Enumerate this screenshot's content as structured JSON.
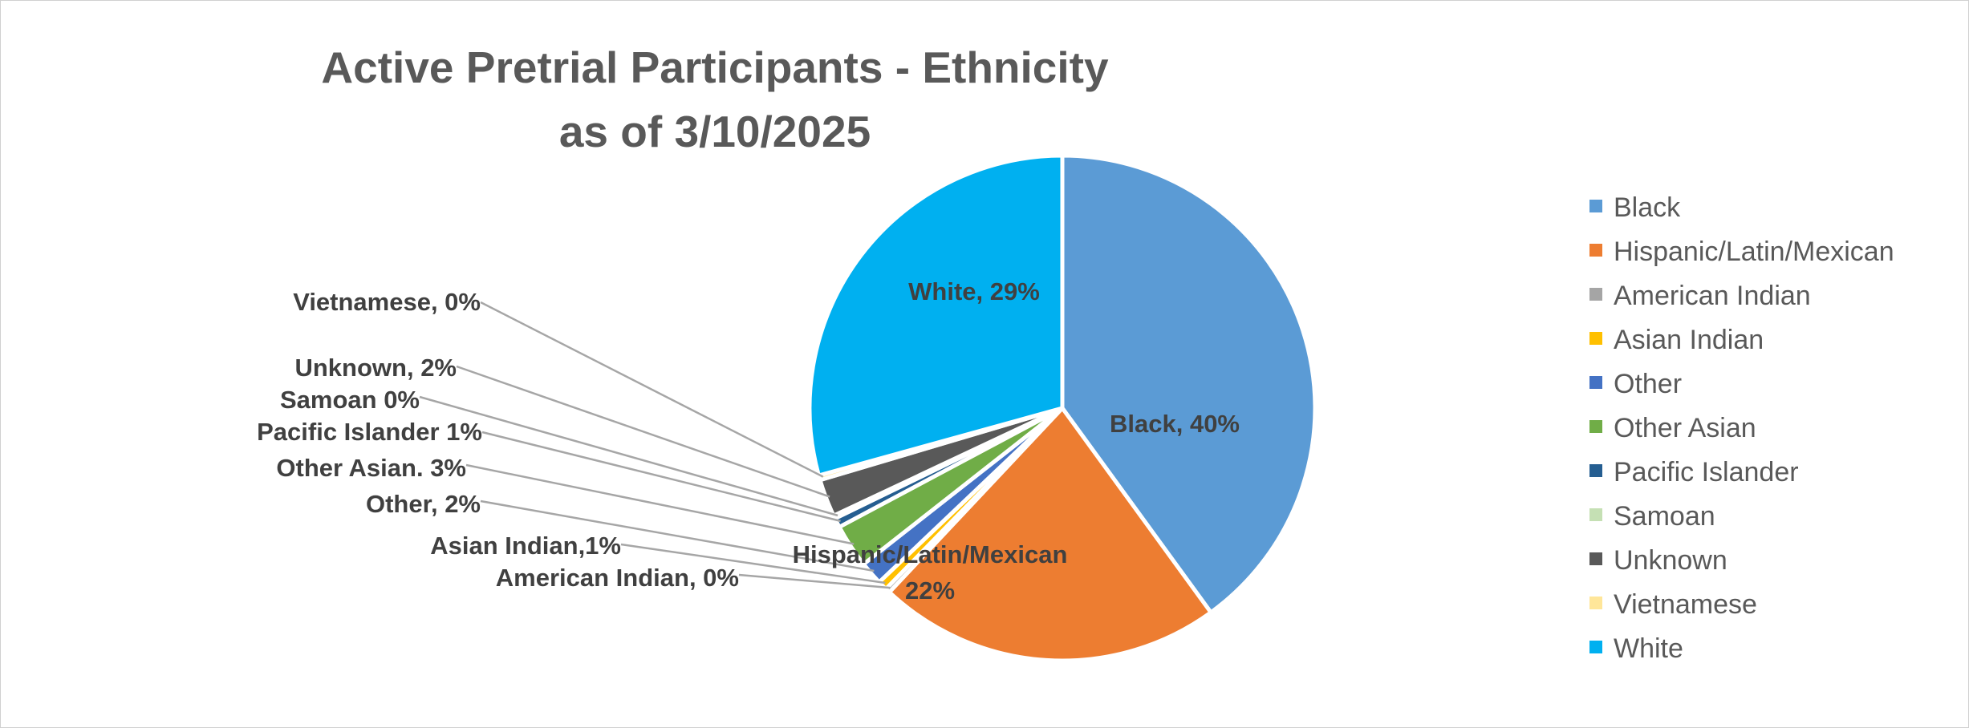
{
  "chart_data": {
    "type": "pie",
    "title": "Active Pretrial Participants - Ethnicity",
    "subtitle": "as of 3/10/2025",
    "slices": [
      {
        "name": "Black",
        "value": 40,
        "color": "#5B9BD5",
        "label_line1": "Black, 40%",
        "label_line2": ""
      },
      {
        "name": "Hispanic/Latin/Mexican",
        "value": 22,
        "color": "#ED7D31",
        "label_line1": "Hispanic/Latin/Mexican",
        "label_line2": "22%"
      },
      {
        "name": "American Indian",
        "value": 0.3,
        "color": "#A5A5A5",
        "label_line1": "American Indian, 0%",
        "label_line2": ""
      },
      {
        "name": "Asian Indian",
        "value": 0.6,
        "color": "#FFC000",
        "label_line1": "Asian Indian,1%",
        "label_line2": ""
      },
      {
        "name": "Other",
        "value": 1.5,
        "color": "#4472C4",
        "label_line1": "Other, 2%",
        "label_line2": ""
      },
      {
        "name": "Other Asian",
        "value": 2.8,
        "color": "#70AD47",
        "label_line1": "Other Asian. 3%",
        "label_line2": ""
      },
      {
        "name": "Pacific Islander",
        "value": 0.6,
        "color": "#255E91",
        "label_line1": "Pacific Islander 1%",
        "label_line2": ""
      },
      {
        "name": "Samoan",
        "value": 0.2,
        "color": "#C5E0B4",
        "label_line1": "Samoan 0%",
        "label_line2": ""
      },
      {
        "name": "Unknown",
        "value": 2.4,
        "color": "#595959",
        "label_line1": "Unknown, 2%",
        "label_line2": ""
      },
      {
        "name": "Vietnamese",
        "value": 0.3,
        "color": "#FFE699",
        "label_line1": "Vietnamese, 0%",
        "label_line2": ""
      },
      {
        "name": "White",
        "value": 29.3,
        "color": "#00B0F0",
        "label_line1": "White, 29%",
        "label_line2": ""
      }
    ],
    "legend_position": "right"
  }
}
